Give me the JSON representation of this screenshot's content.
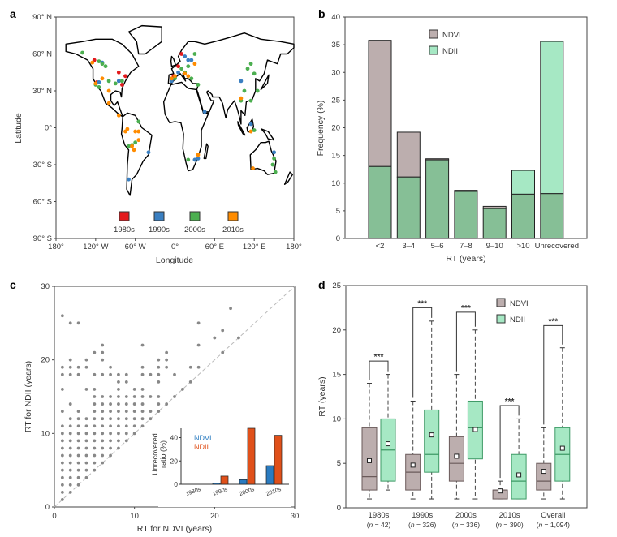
{
  "panels": {
    "a": "a",
    "b": "b",
    "c": "c",
    "d": "d"
  },
  "colors": {
    "ndvi": "#bcaeae",
    "ndii": "#a6e8c4",
    "overlap": "#86bf96",
    "inset_ndvi": "#2a7bc0",
    "inset_ndii": "#e0501a",
    "d1980s": "#e31a1c",
    "d1990s": "#3a7fc1",
    "d2000s": "#4caf50",
    "d2010s": "#ff8c00"
  },
  "chart_data": [
    {
      "panel": "a",
      "type": "scatter",
      "title": "",
      "xlabel": "Longitude",
      "ylabel": "Latitude",
      "xlim": [
        -180,
        180
      ],
      "ylim": [
        -90,
        90
      ],
      "xticks": [
        "180°",
        "120° W",
        "60° W",
        "0°",
        "60° E",
        "120° E",
        "180°"
      ],
      "yticks": [
        "90° N",
        "60° N",
        "30° N",
        "0°",
        "30° S",
        "60° S",
        "90° S"
      ],
      "legend": [
        "1980s",
        "1990s",
        "2000s",
        "2010s"
      ],
      "legend_placement": "bottom-center",
      "sites": [
        [
          -122,
          55,
          "1980s"
        ],
        [
          -85,
          45,
          "1980s"
        ],
        [
          -75,
          42,
          "1980s"
        ],
        [
          -80,
          35,
          "1980s"
        ],
        [
          -118,
          37,
          "1980s"
        ],
        [
          10,
          60,
          "1980s"
        ],
        [
          5,
          50,
          "1980s"
        ],
        [
          -2,
          42,
          "1980s"
        ],
        [
          -110,
          53,
          "1990s"
        ],
        [
          -115,
          37,
          "1990s"
        ],
        [
          -85,
          38,
          "1990s"
        ],
        [
          15,
          58,
          "1990s"
        ],
        [
          20,
          55,
          "1990s"
        ],
        [
          5,
          45,
          "1990s"
        ],
        [
          -5,
          38,
          "1990s"
        ],
        [
          100,
          38,
          "1990s"
        ],
        [
          35,
          -25,
          "1990s"
        ],
        [
          30,
          -26,
          "1990s"
        ],
        [
          45,
          13,
          "1990s"
        ],
        [
          -40,
          -20,
          "1990s"
        ],
        [
          -70,
          -42,
          "1990s"
        ],
        [
          150,
          -20,
          "1990s"
        ],
        [
          115,
          3,
          "1990s"
        ],
        [
          25,
          55,
          "1990s"
        ],
        [
          -140,
          61,
          "2000s"
        ],
        [
          -115,
          54,
          "2000s"
        ],
        [
          -110,
          52,
          "2000s"
        ],
        [
          -105,
          50,
          "2000s"
        ],
        [
          -120,
          35,
          "2000s"
        ],
        [
          -115,
          33,
          "2000s"
        ],
        [
          -100,
          38,
          "2000s"
        ],
        [
          -90,
          36,
          "2000s"
        ],
        [
          -80,
          38,
          "2000s"
        ],
        [
          10,
          48,
          "2000s"
        ],
        [
          15,
          45,
          "2000s"
        ],
        [
          20,
          50,
          "2000s"
        ],
        [
          25,
          40,
          "2000s"
        ],
        [
          30,
          60,
          "2000s"
        ],
        [
          0,
          40,
          "2000s"
        ],
        [
          35,
          35,
          "2000s"
        ],
        [
          110,
          48,
          "2000s"
        ],
        [
          115,
          52,
          "2000s"
        ],
        [
          120,
          44,
          "2000s"
        ],
        [
          105,
          30,
          "2000s"
        ],
        [
          100,
          22,
          "2000s"
        ],
        [
          115,
          22,
          "2000s"
        ],
        [
          120,
          -2,
          "2000s"
        ],
        [
          -55,
          5,
          "2000s"
        ],
        [
          -60,
          -12,
          "2000s"
        ],
        [
          -65,
          -14,
          "2000s"
        ],
        [
          -70,
          -15,
          "2000s"
        ],
        [
          20,
          -26,
          "2000s"
        ],
        [
          150,
          -25,
          "2000s"
        ],
        [
          148,
          -30,
          "2000s"
        ],
        [
          152,
          -36,
          "2000s"
        ],
        [
          125,
          30,
          "2000s"
        ],
        [
          -125,
          53,
          "2010s"
        ],
        [
          -120,
          36,
          "2010s"
        ],
        [
          -110,
          40,
          "2010s"
        ],
        [
          -100,
          30,
          "2010s"
        ],
        [
          -100,
          20,
          "2010s"
        ],
        [
          -85,
          10,
          "2010s"
        ],
        [
          -75,
          -3,
          "2010s"
        ],
        [
          -60,
          -3,
          "2010s"
        ],
        [
          -55,
          -3,
          "2010s"
        ],
        [
          -65,
          -15,
          "2010s"
        ],
        [
          -62,
          -18,
          "2010s"
        ],
        [
          -55,
          -10,
          "2010s"
        ],
        [
          -72,
          -1,
          "2010s"
        ],
        [
          -5,
          40,
          "2010s"
        ],
        [
          0,
          42,
          "2010s"
        ],
        [
          15,
          44,
          "2010s"
        ],
        [
          20,
          42,
          "2010s"
        ],
        [
          30,
          52,
          "2010s"
        ],
        [
          35,
          -22,
          "2010s"
        ],
        [
          118,
          -33,
          "2010s"
        ],
        [
          100,
          24,
          "2010s"
        ],
        [
          115,
          -3,
          "2010s"
        ]
      ]
    },
    {
      "panel": "b",
      "type": "bar",
      "title": "",
      "xlabel": "RT (years)",
      "ylabel": "Frequency (%)",
      "ylim": [
        0,
        40
      ],
      "yticks": [
        "0",
        "5",
        "10",
        "15",
        "20",
        "25",
        "30",
        "35",
        "40"
      ],
      "categories": [
        "<2",
        "3–4",
        "5–6",
        "7–8",
        "9–10",
        ">10",
        "Unrecovered"
      ],
      "series": [
        {
          "name": "NDVI",
          "values": [
            35.8,
            19.2,
            14.4,
            8.7,
            5.8,
            8.0,
            8.1
          ]
        },
        {
          "name": "NDII",
          "values": [
            13.0,
            11.1,
            14.2,
            8.5,
            5.4,
            12.3,
            35.6
          ]
        }
      ],
      "legend_placement": "top-center"
    },
    {
      "panel": "c",
      "type": "scatter",
      "title": "",
      "xlabel": "RT for NDVI (years)",
      "ylabel": "RT for NDII (years)",
      "xlim": [
        0,
        30
      ],
      "ylim": [
        0,
        30
      ],
      "xticks": [
        "0",
        "10",
        "20",
        "30"
      ],
      "yticks": [
        "0",
        "10",
        "20",
        "30"
      ],
      "reference_line": "1:1",
      "columns": [
        {
          "x": 1,
          "y": [
            1,
            2,
            3,
            4,
            5,
            6,
            7,
            8,
            9,
            10,
            11,
            13,
            16,
            18,
            19,
            26
          ]
        },
        {
          "x": 2,
          "y": [
            2,
            3,
            4,
            5,
            6,
            7,
            8,
            9,
            10,
            11,
            12,
            14,
            18,
            19,
            20,
            25
          ]
        },
        {
          "x": 3,
          "y": [
            3,
            4,
            5,
            6,
            7,
            8,
            9,
            10,
            11,
            12,
            13,
            18,
            19,
            25
          ]
        },
        {
          "x": 4,
          "y": [
            4,
            5,
            6,
            7,
            8,
            9,
            10,
            11,
            12,
            16,
            19,
            20
          ]
        },
        {
          "x": 5,
          "y": [
            5,
            6,
            7,
            8,
            9,
            10,
            11,
            12,
            13,
            14,
            15,
            16,
            18,
            21
          ]
        },
        {
          "x": 6,
          "y": [
            6,
            7,
            8,
            9,
            10,
            11,
            12,
            13,
            14,
            15,
            18,
            20,
            21,
            22
          ]
        },
        {
          "x": 7,
          "y": [
            7,
            8,
            9,
            10,
            11,
            12,
            13,
            14,
            15,
            18,
            19
          ]
        },
        {
          "x": 8,
          "y": [
            8,
            9,
            10,
            11,
            12,
            13,
            14,
            15,
            16,
            17,
            18
          ]
        },
        {
          "x": 9,
          "y": [
            9,
            10,
            11,
            12,
            13,
            14,
            15,
            17,
            18
          ]
        },
        {
          "x": 10,
          "y": [
            10,
            11,
            12,
            13,
            14,
            15,
            16
          ]
        },
        {
          "x": 11,
          "y": [
            11,
            12,
            13,
            14,
            15,
            16,
            18,
            19,
            22
          ]
        },
        {
          "x": 12,
          "y": [
            12,
            13,
            15,
            18
          ]
        },
        {
          "x": 13,
          "y": [
            13,
            14,
            15,
            17,
            18,
            19,
            20
          ]
        },
        {
          "x": 14,
          "y": [
            14,
            19,
            20,
            21
          ]
        },
        {
          "x": 15,
          "y": [
            15,
            18
          ]
        },
        {
          "x": 16,
          "y": [
            16
          ]
        },
        {
          "x": 17,
          "y": [
            17,
            19
          ]
        },
        {
          "x": 18,
          "y": [
            19,
            22,
            25
          ]
        },
        {
          "x": 20,
          "y": [
            23
          ]
        },
        {
          "x": 21,
          "y": [
            21,
            24
          ]
        },
        {
          "x": 22,
          "y": [
            27
          ]
        },
        {
          "x": 23,
          "y": [
            23
          ]
        }
      ],
      "inset": {
        "type": "bar",
        "ylabel_line1": "Unrecovered",
        "ylabel_line2": "ratio (%)",
        "ylim": [
          0,
          48
        ],
        "yticks": [
          "0",
          "20",
          "40"
        ],
        "categories": [
          "1980s",
          "1990s",
          "2000s",
          "2010s"
        ],
        "series": [
          {
            "name": "NDVI",
            "values": [
              0,
              1,
              4,
              16
            ]
          },
          {
            "name": "NDII",
            "values": [
              0,
              7,
              48,
              42
            ]
          }
        ],
        "legend_placement": "top-left"
      }
    },
    {
      "panel": "d",
      "type": "box",
      "title": "",
      "xlabel": "",
      "ylabel": "RT (years)",
      "ylim": [
        0,
        25
      ],
      "yticks": [
        "0",
        "5",
        "10",
        "15",
        "20",
        "25"
      ],
      "categories": [
        "1980s",
        "1990s",
        "2000s",
        "2010s",
        "Overall"
      ],
      "n": [
        "42",
        "326",
        "336",
        "390",
        "1,094"
      ],
      "significance": [
        "***",
        "***",
        "***",
        "***",
        "***"
      ],
      "bracket_heights": [
        16.5,
        22.5,
        22,
        11.5,
        20.5
      ],
      "series": [
        {
          "name": "NDVI",
          "boxes": [
            {
              "min": 1,
              "q1": 2,
              "median": 3.5,
              "q3": 9,
              "max": 14,
              "mean": 5.3
            },
            {
              "min": 1,
              "q1": 2,
              "median": 4,
              "q3": 6,
              "max": 12,
              "mean": 4.8
            },
            {
              "min": 1,
              "q1": 3,
              "median": 5,
              "q3": 8,
              "max": 15,
              "mean": 5.8
            },
            {
              "min": 1,
              "q1": 1,
              "median": 2,
              "q3": 2,
              "max": 3,
              "mean": 1.9
            },
            {
              "min": 1,
              "q1": 2,
              "median": 3,
              "q3": 5,
              "max": 9,
              "mean": 4.1
            }
          ]
        },
        {
          "name": "NDII",
          "boxes": [
            {
              "min": 2,
              "q1": 3,
              "median": 6.5,
              "q3": 10,
              "max": 15,
              "mean": 7.2
            },
            {
              "min": 1,
              "q1": 4,
              "median": 6,
              "q3": 11,
              "max": 21,
              "mean": 8.2
            },
            {
              "min": 1,
              "q1": 5.5,
              "median": 9,
              "q3": 12,
              "max": 20,
              "mean": 8.8
            },
            {
              "min": 1,
              "q1": 1,
              "median": 3,
              "q3": 6,
              "max": 10,
              "mean": 3.7
            },
            {
              "min": 1,
              "q1": 3,
              "median": 6,
              "q3": 9,
              "max": 18,
              "mean": 6.7
            }
          ]
        }
      ],
      "legend_placement": "top-right"
    }
  ]
}
